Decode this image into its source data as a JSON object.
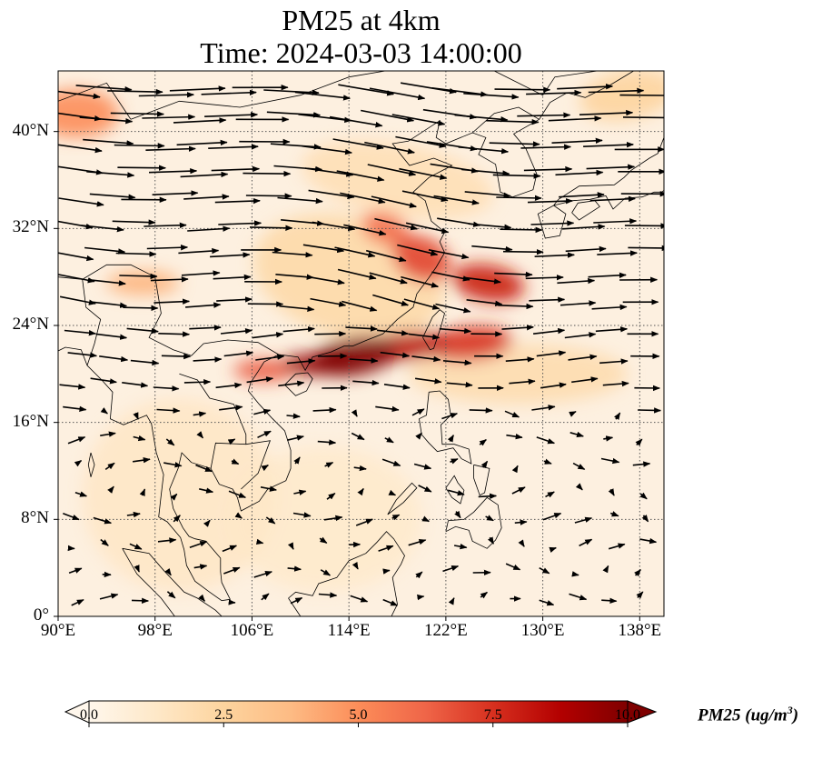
{
  "title_line1": "PM25 at 4km",
  "title_line2": "Time: 2024-03-03 14:00:00",
  "map": {
    "lon_range": [
      90,
      140
    ],
    "lat_range": [
      0,
      45
    ],
    "lon_ticks": [
      {
        "value": 90,
        "label": "90°E"
      },
      {
        "value": 98,
        "label": "98°E"
      },
      {
        "value": 106,
        "label": "106°E"
      },
      {
        "value": 114,
        "label": "114°E"
      },
      {
        "value": 122,
        "label": "122°E"
      },
      {
        "value": 130,
        "label": "130°E"
      },
      {
        "value": 138,
        "label": "138°E"
      }
    ],
    "lat_ticks": [
      {
        "value": 0,
        "label": "0°"
      },
      {
        "value": 8,
        "label": "8°N"
      },
      {
        "value": 16,
        "label": "16°N"
      },
      {
        "value": 24,
        "label": "24°N"
      },
      {
        "value": 32,
        "label": "32°N"
      },
      {
        "value": 40,
        "label": "40°N"
      }
    ],
    "gridlines": "dotted",
    "colormap": "OrRd",
    "plumes": [
      {
        "lon": 114.5,
        "lat": 21.5,
        "rlon": 3.5,
        "rlat": 1.6,
        "v": 10,
        "rot": -10
      },
      {
        "lon": 111.5,
        "lat": 20.8,
        "rlon": 3.0,
        "rlat": 0.9,
        "v": 9.5,
        "rot": 0
      },
      {
        "lon": 119,
        "lat": 22.3,
        "rlon": 3.2,
        "rlat": 1.2,
        "v": 8.5,
        "rot": -5
      },
      {
        "lon": 124,
        "lat": 22.5,
        "rlon": 3.5,
        "rlat": 1.4,
        "v": 7.5,
        "rot": -5
      },
      {
        "lon": 125.5,
        "lat": 27.5,
        "rlon": 3.0,
        "rlat": 1.5,
        "v": 8,
        "rot": 10
      },
      {
        "lon": 120,
        "lat": 29.5,
        "rlon": 2.5,
        "rlat": 1.8,
        "v": 7,
        "rot": 25
      },
      {
        "lon": 117,
        "lat": 32,
        "rlon": 2.0,
        "rlat": 1.3,
        "v": 6,
        "rot": 20
      },
      {
        "lon": 107,
        "lat": 20.3,
        "rlon": 2.5,
        "rlat": 0.9,
        "v": 6.5,
        "rot": 0
      },
      {
        "lon": 91.5,
        "lat": 41.5,
        "rlon": 3.5,
        "rlat": 2.0,
        "v": 5,
        "rot": 0
      },
      {
        "lon": 97,
        "lat": 27.5,
        "rlon": 3.0,
        "rlat": 1.0,
        "v": 4,
        "rot": 0
      },
      {
        "lon": 137,
        "lat": 43,
        "rlon": 4.0,
        "rlat": 2.0,
        "v": 2.5,
        "rot": -10
      },
      {
        "lon": 114,
        "lat": 28,
        "rlon": 8.0,
        "rlat": 5.0,
        "v": 2.2,
        "rot": 15
      },
      {
        "lon": 128,
        "lat": 20,
        "rlon": 9.0,
        "rlat": 2.5,
        "v": 2.0,
        "rot": 0
      },
      {
        "lon": 118,
        "lat": 36,
        "rlon": 8.0,
        "rlat": 3.0,
        "v": 1.8,
        "rot": 10
      },
      {
        "lon": 100,
        "lat": 10,
        "rlon": 8.0,
        "rlat": 8.0,
        "v": 1.3,
        "rot": 0
      },
      {
        "lon": 112,
        "lat": 8,
        "rlon": 8.0,
        "rlat": 6.0,
        "v": 1.1,
        "rot": 0
      }
    ],
    "wind_field": {
      "flow": "westerly, strongest north of 24°N, weak and variable in the tropics"
    }
  },
  "colorbar": {
    "min": 0,
    "max": 10,
    "extend": "both",
    "ticks": [
      {
        "value": 0,
        "label": "0.0"
      },
      {
        "value": 2.5,
        "label": "2.5"
      },
      {
        "value": 5,
        "label": "5.0"
      },
      {
        "value": 7.5,
        "label": "7.5"
      },
      {
        "value": 10,
        "label": "10.0"
      }
    ],
    "label": "PM25 (ug/m",
    "label_sup": "3",
    "label_end": ")"
  }
}
